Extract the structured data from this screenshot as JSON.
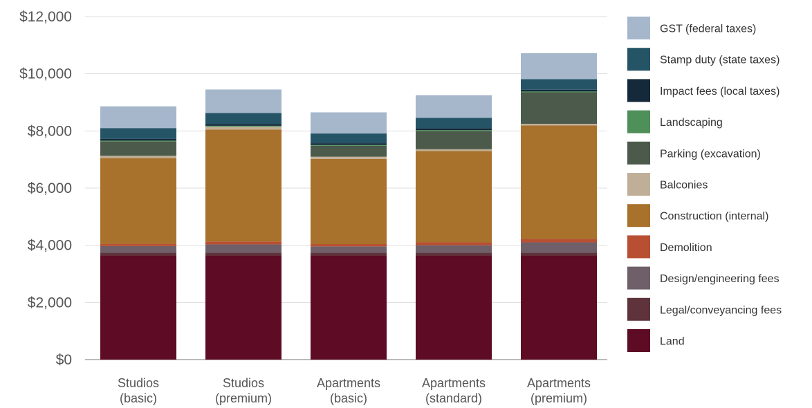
{
  "chart_data": {
    "type": "bar",
    "stacked": true,
    "title": "",
    "xlabel": "",
    "ylabel": "",
    "ylim": [
      0,
      12000
    ],
    "y_ticks": [
      0,
      2000,
      4000,
      6000,
      8000,
      10000,
      12000
    ],
    "y_tick_labels": [
      "$0",
      "$2,000",
      "$4,000",
      "$6,000",
      "$8,000",
      "$10,000",
      "$12,000"
    ],
    "grid": true,
    "legend_position": "right",
    "categories": [
      [
        "Studios",
        "(basic)"
      ],
      [
        "Studios",
        "(premium)"
      ],
      [
        "Apartments",
        "(basic)"
      ],
      [
        "Apartments",
        "(standard)"
      ],
      [
        "Apartments",
        "(premium)"
      ]
    ],
    "series": [
      {
        "name": "Land",
        "color": "#5e0b25",
        "values": [
          3640,
          3640,
          3640,
          3640,
          3640
        ]
      },
      {
        "name": "Legal/conveyancing fees",
        "color": "#5e333b",
        "values": [
          100,
          100,
          100,
          100,
          100
        ]
      },
      {
        "name": "Design/engineering fees",
        "color": "#6e5f69",
        "values": [
          230,
          290,
          220,
          260,
          360
        ]
      },
      {
        "name": "Demolition",
        "color": "#b84f32",
        "values": [
          80,
          100,
          80,
          100,
          110
        ]
      },
      {
        "name": "Construction (internal)",
        "color": "#a8712c",
        "values": [
          3000,
          3920,
          2980,
          3200,
          3980
        ]
      },
      {
        "name": "Balconies",
        "color": "#c0af98",
        "values": [
          80,
          100,
          80,
          60,
          60
        ]
      },
      {
        "name": "Parking (excavation)",
        "color": "#4b5a4a",
        "values": [
          500,
          0,
          380,
          640,
          1100
        ]
      },
      {
        "name": "Landscaping",
        "color": "#4f8f5a",
        "values": [
          30,
          30,
          30,
          30,
          30
        ]
      },
      {
        "name": "Impact fees (local taxes)",
        "color": "#14293a",
        "values": [
          60,
          60,
          60,
          60,
          60
        ]
      },
      {
        "name": "Stamp duty (state taxes)",
        "color": "#255467",
        "values": [
          380,
          390,
          340,
          370,
          370
        ]
      },
      {
        "name": "GST (federal taxes)",
        "color": "#a6b7cc",
        "values": [
          760,
          820,
          740,
          790,
          910
        ]
      }
    ]
  }
}
